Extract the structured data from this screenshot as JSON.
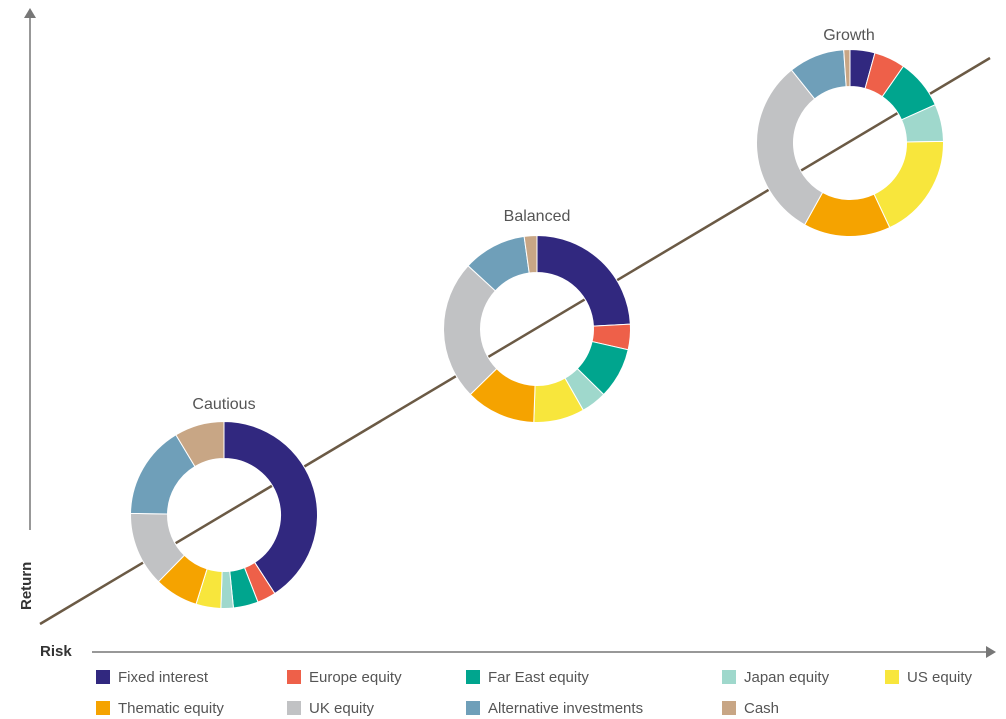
{
  "chart_data": {
    "type": "pie",
    "variant": "donut",
    "xlabel": "Risk",
    "ylabel": "Return",
    "segments": [
      "Fixed interest",
      "Europe equity",
      "Far East equity",
      "Japan equity",
      "US equity",
      "Thematic equity",
      "UK equity",
      "Alternative investments",
      "Cash"
    ],
    "colors": [
      "#31287f",
      "#ee6049",
      "#00a58e",
      "#9fd8cc",
      "#f8e63c",
      "#f5a300",
      "#c1c2c4",
      "#6f9fb9",
      "#c8a685"
    ],
    "portfolios": [
      {
        "name": "Cautious",
        "values": [
          38,
          3,
          4,
          2,
          4,
          7,
          12,
          15,
          8
        ]
      },
      {
        "name": "Balanced",
        "values": [
          22,
          4,
          8,
          4,
          8,
          11,
          22,
          10,
          2
        ]
      },
      {
        "name": "Growth",
        "values": [
          4,
          5,
          8,
          6,
          17,
          14,
          29,
          9,
          1
        ]
      }
    ],
    "legend_position": "bottom"
  }
}
